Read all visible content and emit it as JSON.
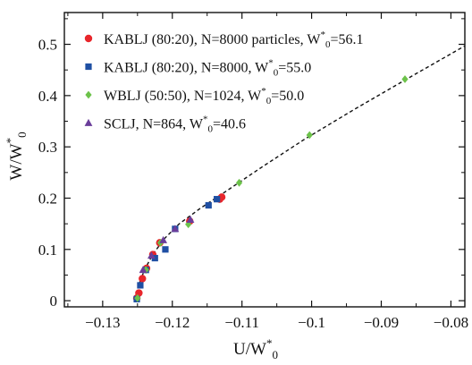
{
  "chart_data": {
    "type": "scatter",
    "xlabel": "U/W*0",
    "ylabel": "W/W*0",
    "xlim": [
      -0.1355,
      -0.078
    ],
    "ylim": [
      -0.012,
      0.562
    ],
    "legend_position": "top-left",
    "xticks": [
      -0.13,
      -0.12,
      -0.11,
      -0.1,
      -0.09,
      -0.08
    ],
    "xtick_labels": [
      "−0.13",
      "−0.12",
      "−0.11",
      "−0.1",
      "−0.09",
      "−0.08"
    ],
    "yticks": [
      0,
      0.1,
      0.2,
      0.3,
      0.4,
      0.5
    ],
    "ytick_labels": [
      "0",
      "0.1",
      "0.2",
      "0.3",
      "0.4",
      "0.5"
    ],
    "series": [
      {
        "name": "KABLJ (80:20), N=8000 particles, W*0=56.1",
        "marker": "circle",
        "color": "#e8262b",
        "x": [
          -0.1251,
          -0.1248,
          -0.1243,
          -0.1237,
          -0.1228,
          -0.1218,
          -0.1175,
          -0.1132,
          -0.1129
        ],
        "y": [
          0.005,
          0.015,
          0.043,
          0.063,
          0.09,
          0.113,
          0.155,
          0.198,
          0.202
        ]
      },
      {
        "name": "KABLJ (80:20), N=8000, W*0=55.0",
        "marker": "square",
        "color": "#1f4fa3",
        "x": [
          -0.1251,
          -0.1246,
          -0.1238,
          -0.1225,
          -0.121,
          -0.1196,
          -0.1148,
          -0.1136
        ],
        "y": [
          0.003,
          0.03,
          0.06,
          0.083,
          0.1,
          0.14,
          0.186,
          0.198
        ]
      },
      {
        "name": "WBLJ (50:50), N=1024, W*0=50.0",
        "marker": "diamond",
        "color": "#6cc24a",
        "x": [
          -0.125,
          -0.1238,
          -0.1217,
          -0.1177,
          -0.1104,
          -0.1003,
          -0.0866
        ],
        "y": [
          0.005,
          0.06,
          0.113,
          0.149,
          0.23,
          0.323,
          0.432
        ]
      },
      {
        "name": "SCLJ, N=864, W*0=40.6",
        "marker": "triangle",
        "color": "#6a3d9a",
        "x": [
          -0.1242,
          -0.123,
          -0.1213,
          -0.1196,
          -0.1174
        ],
        "y": [
          0.06,
          0.088,
          0.118,
          0.14,
          0.158
        ]
      }
    ],
    "fit_line": {
      "style": "dashed",
      "color": "#111111",
      "x": [
        -0.1253,
        -0.1251,
        -0.1247,
        -0.124,
        -0.1228,
        -0.1212,
        -0.119,
        -0.116,
        -0.112,
        -0.107,
        -0.101,
        -0.094,
        -0.086,
        -0.078
      ],
      "y": [
        0.0,
        0.015,
        0.035,
        0.06,
        0.09,
        0.12,
        0.15,
        0.18,
        0.216,
        0.262,
        0.315,
        0.372,
        0.435,
        0.497
      ]
    }
  }
}
